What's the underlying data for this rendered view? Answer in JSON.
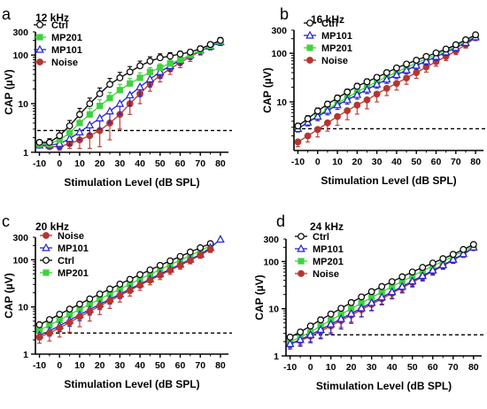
{
  "figure": {
    "xlabel": "Stimulation Level (dB SPL)",
    "ylabel": "CAP (µV)"
  },
  "series_styles": {
    "Ctrl": {
      "color": "#000000",
      "fill": "#ffffff",
      "marker": "open-circle"
    },
    "MP201": {
      "color": "#3fd23f",
      "fill": "#3fd23f",
      "marker": "filled-square"
    },
    "MP101": {
      "color": "#2222cc",
      "fill": "#ffffff",
      "marker": "open-triangle"
    },
    "Noise": {
      "color": "#b5362e",
      "fill": "#b5362e",
      "marker": "filled-circle"
    }
  },
  "threshold_line": {
    "y": 2.8,
    "style": "dashed"
  },
  "chart_data": [
    {
      "panel": "a",
      "type": "line",
      "title": "12 kHz",
      "xlabel": "Stimulation Level (dB SPL)",
      "ylabel": "CAP (µV)",
      "xticks": [
        -10,
        0,
        10,
        20,
        30,
        40,
        50,
        60,
        70,
        80
      ],
      "yticks": [
        1,
        10,
        100
      ],
      "yticklabels": [
        "1",
        "10",
        "100"
      ],
      "ytop_label": "300",
      "ylim": [
        1,
        300
      ],
      "yscale": "log",
      "xlim": [
        -12,
        84
      ],
      "legend": [
        "Ctrl",
        "MP201",
        "MP101",
        "Noise"
      ],
      "x": [
        -10,
        -5,
        0,
        5,
        10,
        15,
        20,
        25,
        30,
        35,
        40,
        45,
        50,
        55,
        60,
        65,
        70,
        75,
        80
      ],
      "series": [
        {
          "name": "Ctrl",
          "values": [
            1.6,
            1.6,
            2.2,
            3.5,
            6,
            10,
            16,
            25,
            34,
            45,
            60,
            75,
            88,
            95,
            105,
            115,
            135,
            165,
            200
          ],
          "err": [
            0.2,
            0.3,
            0.6,
            1,
            2,
            3,
            5,
            8,
            10,
            13,
            15,
            17,
            18,
            17,
            15,
            15,
            18,
            22,
            30
          ]
        },
        {
          "name": "MP201",
          "values": [
            1.5,
            1.5,
            1.8,
            2.5,
            4,
            6,
            9,
            13,
            19,
            26,
            34,
            45,
            55,
            67,
            80,
            100,
            125,
            155,
            190
          ],
          "err": [
            0.1,
            0.2,
            0.4,
            0.7,
            1.2,
            2,
            3,
            4,
            6,
            7,
            9,
            10,
            11,
            12,
            14,
            15,
            18,
            22,
            30
          ]
        },
        {
          "name": "MP101",
          "values": [
            1.4,
            1.4,
            1.5,
            1.9,
            2.6,
            3.6,
            5,
            7,
            10,
            15,
            22,
            32,
            45,
            60,
            78,
            100,
            125,
            150,
            185
          ],
          "err": [
            0.1,
            0.1,
            0.3,
            0.5,
            0.8,
            1.2,
            2,
            3,
            4,
            6,
            8,
            10,
            12,
            14,
            16,
            18,
            20,
            22,
            28
          ]
        },
        {
          "name": "Noise",
          "values": [
            1.4,
            1.3,
            1.3,
            1.5,
            1.8,
            2.2,
            2.8,
            4,
            6,
            10,
            16,
            26,
            38,
            52,
            70,
            92,
            120,
            150,
            185
          ],
          "err": [
            0.1,
            0.1,
            0.2,
            0.3,
            0.6,
            1,
            1.5,
            2.2,
            3,
            4,
            6,
            8,
            10,
            12,
            15,
            18,
            20,
            22,
            28
          ]
        }
      ]
    },
    {
      "panel": "b",
      "type": "line",
      "title": "16 kHz",
      "xlabel": "Stimulation Level (dB SPL)",
      "ylabel": "CAP (µV)",
      "xticks": [
        -10,
        0,
        10,
        20,
        30,
        40,
        50,
        60,
        70,
        80
      ],
      "yticks": [
        10,
        100
      ],
      "yticklabels": [
        "10",
        "100"
      ],
      "ytop_label": "300",
      "ylim": [
        1,
        300
      ],
      "yscale": "log",
      "xlim": [
        -12,
        84
      ],
      "legend": [
        "Ctrl",
        "MP101",
        "MP201",
        "Noise"
      ],
      "x": [
        -10,
        -5,
        0,
        5,
        10,
        15,
        20,
        25,
        30,
        35,
        40,
        45,
        50,
        55,
        60,
        65,
        70,
        75,
        80
      ],
      "series": [
        {
          "name": "Ctrl",
          "values": [
            3.2,
            4.5,
            6.5,
            9,
            12,
            16,
            21,
            26,
            32,
            40,
            50,
            60,
            72,
            86,
            102,
            122,
            150,
            190,
            240
          ],
          "err": [
            0.4,
            0.7,
            1,
            1.3,
            1.8,
            2.3,
            3,
            3.5,
            4,
            5,
            6,
            7,
            8,
            9,
            10,
            12,
            15,
            18,
            22
          ]
        },
        {
          "name": "MP101",
          "values": [
            2.8,
            3.8,
            5,
            6.6,
            8.6,
            11,
            14,
            18,
            23,
            29,
            36,
            45,
            56,
            69,
            85,
            105,
            130,
            165,
            215
          ],
          "err": [
            0.4,
            0.6,
            0.9,
            1.2,
            1.6,
            2,
            2.6,
            3.2,
            4,
            5,
            6,
            7,
            9,
            11,
            13,
            15,
            18,
            22,
            28
          ]
        },
        {
          "name": "MP201",
          "values": [
            2.8,
            3.8,
            5.2,
            7,
            9.4,
            12.3,
            16,
            20.5,
            26,
            33,
            41,
            51,
            63,
            77,
            94,
            115,
            140,
            175,
            225
          ],
          "err": [
            0.3,
            0.5,
            0.7,
            1,
            1.4,
            1.8,
            2.3,
            2.8,
            3.4,
            4,
            5,
            6,
            7,
            8,
            9,
            11,
            13,
            16,
            20
          ]
        },
        {
          "name": "Noise",
          "values": [
            1.5,
            2,
            2.7,
            3.7,
            5,
            6.6,
            8.6,
            11,
            14.5,
            19,
            24,
            31,
            40,
            52,
            67,
            86,
            112,
            150,
            210
          ],
          "err": [
            0.3,
            0.5,
            0.8,
            1.2,
            1.7,
            2.3,
            3,
            3.8,
            4.5,
            5.5,
            6.5,
            8,
            9.5,
            11,
            13,
            15,
            18,
            22,
            28
          ]
        }
      ]
    },
    {
      "panel": "c",
      "type": "line",
      "title": "20 kHz",
      "xlabel": "Stimulation Level (dB SPL)",
      "ylabel": "CAP (µV)",
      "xticks": [
        -10,
        0,
        10,
        20,
        30,
        40,
        50,
        60,
        70,
        80
      ],
      "yticks": [
        1,
        10,
        100
      ],
      "yticklabels": [
        "1",
        "10",
        "100"
      ],
      "ytop_label": "300",
      "ylim": [
        1,
        300
      ],
      "yscale": "log",
      "xlim": [
        -12,
        84
      ],
      "legend": [
        "Noise",
        "MP101",
        "Ctrl",
        "MP201"
      ],
      "x": [
        -10,
        -5,
        0,
        5,
        10,
        15,
        20,
        25,
        30,
        35,
        40,
        45,
        50,
        55,
        60,
        65,
        70,
        75,
        80
      ],
      "series": [
        {
          "name": "Noise",
          "values": [
            2.3,
            2.8,
            3.6,
            4.7,
            6.2,
            8,
            10.5,
            13.5,
            17.5,
            22.5,
            29,
            37,
            47,
            60,
            76,
            97,
            125,
            165,
            null
          ],
          "err": [
            0.6,
            0.9,
            1.3,
            1.8,
            2.4,
            3,
            3.6,
            4.2,
            4.8,
            5.5,
            6.5,
            7.5,
            9,
            11,
            13,
            15,
            18,
            22,
            0
          ]
        },
        {
          "name": "MP101",
          "values": [
            2.5,
            3.1,
            4,
            5.2,
            6.8,
            8.8,
            11.4,
            14.6,
            18.7,
            24,
            30.5,
            39,
            50,
            63,
            80,
            102,
            130,
            180,
            270
          ],
          "err": [
            0.5,
            0.7,
            1,
            1.3,
            1.7,
            2.1,
            2.6,
            3.1,
            3.7,
            4.4,
            5.2,
            6,
            7,
            8,
            9.5,
            11,
            13,
            16,
            0
          ]
        },
        {
          "name": "Ctrl",
          "values": [
            4.2,
            5.4,
            7,
            9,
            11.5,
            14.8,
            18.8,
            24,
            30.5,
            38.5,
            48.5,
            61,
            76,
            95,
            118,
            146,
            180,
            220,
            null
          ],
          "err": [
            0.5,
            0.6,
            0.8,
            1,
            1.3,
            1.6,
            2,
            2.4,
            2.9,
            3.4,
            4,
            4.7,
            5.5,
            6.5,
            7.5,
            9,
            11,
            14,
            0
          ]
        },
        {
          "name": "MP201",
          "values": [
            3.2,
            4.1,
            5.3,
            6.9,
            8.9,
            11.5,
            14.7,
            18.8,
            24,
            30.5,
            38.8,
            49,
            62,
            78,
            98,
            123,
            155,
            200,
            null
          ],
          "err": [
            0.4,
            0.5,
            0.7,
            0.9,
            1.1,
            1.4,
            1.7,
            2,
            2.4,
            2.8,
            3.3,
            3.9,
            4.6,
            5.4,
            6.3,
            7.5,
            9,
            11,
            0
          ]
        }
      ]
    },
    {
      "panel": "d",
      "type": "line",
      "title": "24 kHz",
      "xlabel": "Stimulation Level (dB SPL)",
      "ylabel": "CAP (µV)",
      "xticks": [
        -10,
        0,
        10,
        20,
        30,
        40,
        50,
        60,
        70,
        80
      ],
      "yticks": [
        1,
        10,
        100
      ],
      "yticklabels": [
        "1",
        "10",
        "100"
      ],
      "ytop_label": "300",
      "ylim": [
        1,
        300
      ],
      "yscale": "log",
      "xlim": [
        -12,
        84
      ],
      "legend": [
        "Ctrl",
        "MP101",
        "MP201",
        "Noise"
      ],
      "x": [
        -10,
        -5,
        0,
        5,
        10,
        15,
        20,
        25,
        30,
        35,
        40,
        45,
        50,
        55,
        60,
        65,
        70,
        75,
        80
      ],
      "series": [
        {
          "name": "Ctrl",
          "values": [
            2.5,
            3.2,
            4.3,
            5.8,
            7.7,
            10.2,
            13.5,
            17.8,
            23,
            29.5,
            37.5,
            47.5,
            60,
            75,
            93,
            115,
            142,
            180,
            230
          ],
          "err": [
            0.3,
            0.4,
            0.6,
            0.8,
            1,
            1.3,
            1.7,
            2.1,
            2.6,
            3.2,
            3.9,
            4.7,
            5.6,
            6.6,
            7.8,
            9,
            11,
            14,
            18
          ]
        },
        {
          "name": "MP101",
          "values": [
            1.8,
            2.2,
            2.8,
            3.6,
            4.7,
            6.1,
            7.9,
            10.3,
            13.4,
            17.5,
            22.7,
            29.5,
            38.3,
            50,
            65,
            84,
            110,
            145,
            200
          ],
          "err": [
            0.4,
            0.6,
            0.9,
            1.3,
            1.8,
            2.4,
            3,
            3.6,
            4.2,
            5,
            6,
            7,
            8.5,
            10,
            12,
            14,
            17,
            20,
            25
          ]
        },
        {
          "name": "MP201",
          "values": [
            2,
            2.5,
            3.2,
            4.3,
            5.7,
            7.6,
            10,
            13.2,
            17.3,
            22.6,
            29.4,
            38,
            49,
            63,
            80,
            102,
            130,
            165,
            215
          ],
          "err": [
            0.3,
            0.4,
            0.6,
            0.8,
            1.1,
            1.4,
            1.8,
            2.3,
            2.9,
            3.6,
            4.4,
            5.3,
            6.4,
            7.6,
            9,
            10.6,
            12.5,
            15,
            19
          ]
        },
        {
          "name": "Noise",
          "values": [
            1.8,
            2.1,
            2.6,
            3.3,
            4.3,
            5.6,
            7.3,
            9.5,
            12.4,
            16.2,
            21.2,
            27.7,
            36.2,
            47.3,
            62,
            81,
            106,
            140,
            195
          ],
          "err": [
            0.3,
            0.4,
            0.6,
            0.9,
            1.2,
            1.6,
            2.1,
            2.7,
            3.4,
            4.2,
            5.1,
            6.2,
            7.5,
            9,
            10.8,
            12.8,
            15,
            18,
            22
          ]
        }
      ]
    }
  ]
}
